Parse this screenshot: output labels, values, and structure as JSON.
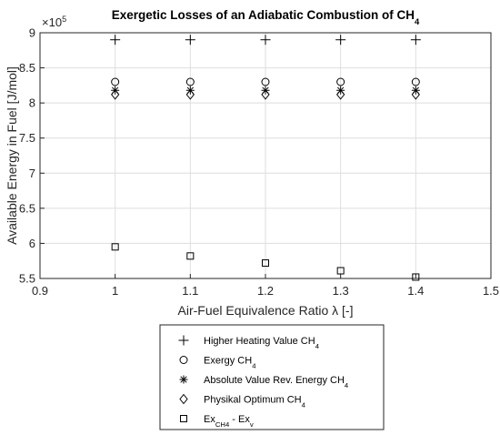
{
  "chart_data": {
    "type": "scatter",
    "title": "Exergetic Losses of an Adiabatic Combustion of CH",
    "title_sub": "4",
    "xlabel": "Air-Fuel Equivalence Ratio λ [-]",
    "ylabel": "Available Energy in Fuel [J/mol]",
    "exponent_base": "×10",
    "exponent_power": "5",
    "xlim": [
      0.9,
      1.5
    ],
    "ylim": [
      5.5,
      9
    ],
    "xticks": [
      "0.9",
      "1",
      "1.1",
      "1.2",
      "1.3",
      "1.4",
      "1.5"
    ],
    "yticks": [
      "5.5",
      "6",
      "6.5",
      "7",
      "7.5",
      "8",
      "8.5",
      "9"
    ],
    "grid": true,
    "legend_position": "below",
    "x": [
      1.0,
      1.1,
      1.2,
      1.3,
      1.4
    ],
    "series": [
      {
        "name": "Higher Heating Value CH",
        "name_sub": "4",
        "marker": "plus",
        "values": [
          8.9,
          8.9,
          8.9,
          8.9,
          8.9
        ]
      },
      {
        "name": "Exergy CH",
        "name_sub": "4",
        "marker": "circle",
        "values": [
          8.3,
          8.3,
          8.3,
          8.3,
          8.3
        ]
      },
      {
        "name": "Absolute Value Rev. Energy CH",
        "name_sub": "4",
        "marker": "asterisk",
        "values": [
          8.18,
          8.18,
          8.18,
          8.18,
          8.18
        ]
      },
      {
        "name": "Physikal Optimum CH",
        "name_sub": "4",
        "marker": "diamond",
        "values": [
          8.12,
          8.12,
          8.12,
          8.12,
          8.12
        ]
      },
      {
        "name": "Ex",
        "name_sub": "CH4",
        "name_mid": " - Ex",
        "name_sub2": "v",
        "marker": "square",
        "values": [
          5.95,
          5.82,
          5.72,
          5.61,
          5.52
        ]
      }
    ]
  }
}
